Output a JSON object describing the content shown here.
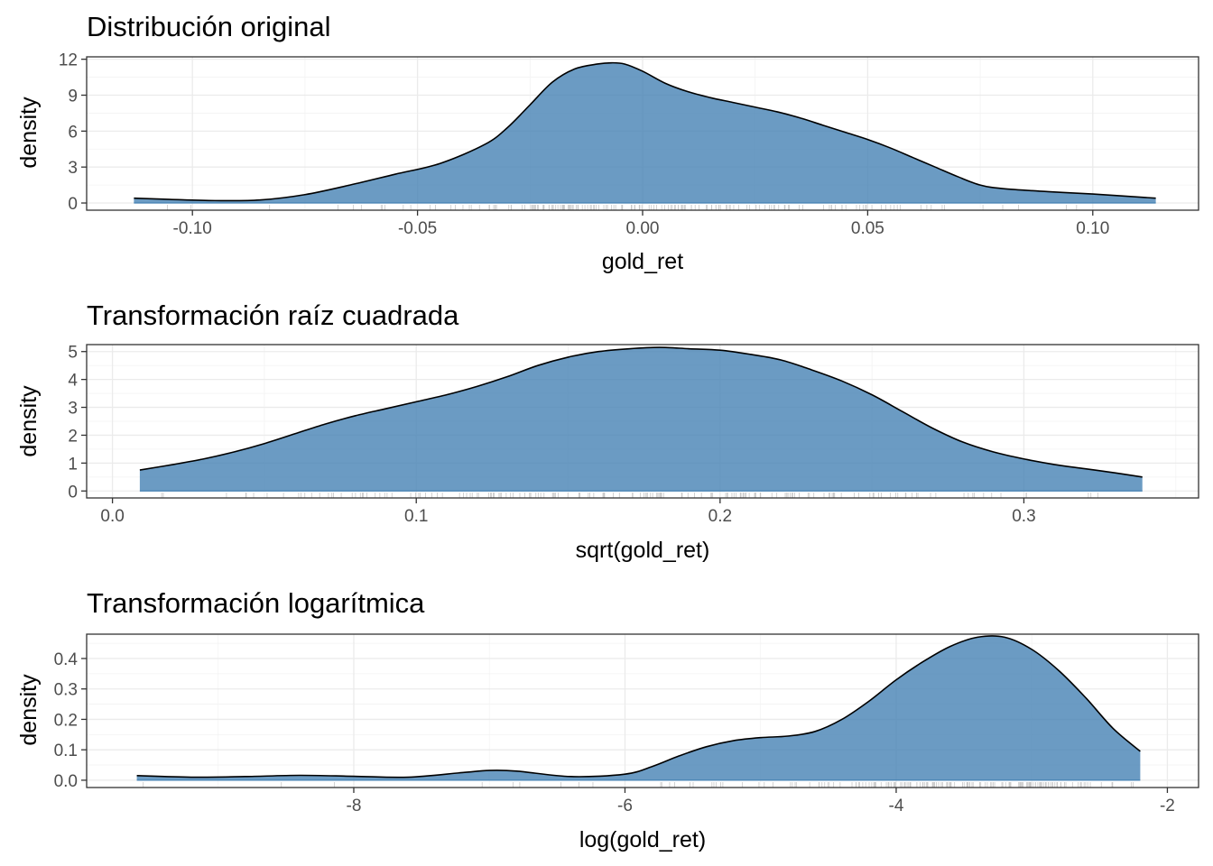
{
  "chart_data": [
    {
      "type": "area",
      "title": "Distribución original",
      "xlabel": "gold_ret",
      "ylabel": "density",
      "xlim": [
        -0.1235,
        0.1235
      ],
      "ylim": [
        -0.6,
        12.2
      ],
      "x_ticks": [
        -0.1,
        -0.05,
        0.0,
        0.05,
        0.1
      ],
      "x_tick_labels": [
        "-0.10",
        "-0.05",
        "0.00",
        "0.05",
        "0.10"
      ],
      "y_ticks": [
        0,
        3,
        6,
        9,
        12
      ],
      "y_tick_labels": [
        "0",
        "3",
        "6",
        "9",
        "12"
      ],
      "grid": true,
      "fill_color": "#4682b4",
      "series": [
        {
          "x": [
            -0.113,
            -0.105,
            -0.095,
            -0.085,
            -0.075,
            -0.065,
            -0.055,
            -0.045,
            -0.035,
            -0.03,
            -0.025,
            -0.02,
            -0.015,
            -0.01,
            -0.007,
            -0.004,
            0.0,
            0.005,
            0.01,
            0.015,
            0.02,
            0.025,
            0.03,
            0.035,
            0.04,
            0.045,
            0.05,
            0.055,
            0.06,
            0.065,
            0.07,
            0.075,
            0.08,
            0.09,
            0.1,
            0.114
          ],
          "y": [
            0.4,
            0.3,
            0.2,
            0.25,
            0.7,
            1.5,
            2.4,
            3.3,
            4.9,
            6.3,
            8.2,
            10.1,
            11.2,
            11.6,
            11.7,
            11.6,
            11.0,
            10.0,
            9.3,
            8.8,
            8.4,
            8.0,
            7.6,
            7.1,
            6.5,
            5.9,
            5.3,
            4.6,
            3.8,
            3.0,
            2.2,
            1.5,
            1.2,
            0.95,
            0.75,
            0.4
          ]
        }
      ]
    },
    {
      "type": "area",
      "title": "Transformación raíz cuadrada",
      "xlabel": "sqrt(gold_ret)",
      "ylabel": "density",
      "xlim": [
        -0.0085,
        0.3575
      ],
      "ylim": [
        -0.25,
        5.25
      ],
      "x_ticks": [
        0.0,
        0.1,
        0.2,
        0.3
      ],
      "x_tick_labels": [
        "0.0",
        "0.1",
        "0.2",
        "0.3"
      ],
      "y_ticks": [
        0,
        1,
        2,
        3,
        4,
        5
      ],
      "y_tick_labels": [
        "0",
        "1",
        "2",
        "3",
        "4",
        "5"
      ],
      "grid": true,
      "fill_color": "#4682b4",
      "series": [
        {
          "x": [
            0.009,
            0.02,
            0.03,
            0.04,
            0.05,
            0.06,
            0.07,
            0.08,
            0.09,
            0.1,
            0.11,
            0.12,
            0.13,
            0.14,
            0.15,
            0.16,
            0.17,
            0.18,
            0.19,
            0.2,
            0.21,
            0.22,
            0.23,
            0.24,
            0.25,
            0.26,
            0.27,
            0.28,
            0.29,
            0.3,
            0.31,
            0.32,
            0.33,
            0.339
          ],
          "y": [
            0.75,
            0.95,
            1.15,
            1.4,
            1.7,
            2.05,
            2.4,
            2.7,
            2.95,
            3.2,
            3.45,
            3.75,
            4.1,
            4.5,
            4.8,
            5.0,
            5.1,
            5.15,
            5.1,
            5.05,
            4.9,
            4.7,
            4.35,
            3.95,
            3.45,
            2.85,
            2.25,
            1.75,
            1.4,
            1.15,
            0.95,
            0.8,
            0.65,
            0.5
          ]
        }
      ]
    },
    {
      "type": "area",
      "title": "Transformación logarítmica",
      "xlabel": "log(gold_ret)",
      "ylabel": "density",
      "xlim": [
        -9.97,
        -1.77
      ],
      "ylim": [
        -0.024,
        0.48
      ],
      "x_ticks": [
        -8,
        -6,
        -4,
        -2
      ],
      "x_tick_labels": [
        "-8",
        "-6",
        "-4",
        "-2"
      ],
      "y_ticks": [
        0.0,
        0.1,
        0.2,
        0.3,
        0.4
      ],
      "y_tick_labels": [
        "0.0",
        "0.1",
        "0.2",
        "0.3",
        "0.4"
      ],
      "grid": true,
      "fill_color": "#4682b4",
      "series": [
        {
          "x": [
            -9.6,
            -9.2,
            -8.8,
            -8.4,
            -8.0,
            -7.6,
            -7.2,
            -7.0,
            -6.8,
            -6.4,
            -6.0,
            -5.8,
            -5.6,
            -5.4,
            -5.2,
            -5.0,
            -4.8,
            -4.6,
            -4.4,
            -4.2,
            -4.0,
            -3.8,
            -3.6,
            -3.4,
            -3.2,
            -3.0,
            -2.8,
            -2.6,
            -2.4,
            -2.2
          ],
          "y": [
            0.015,
            0.01,
            0.012,
            0.016,
            0.013,
            0.01,
            0.025,
            0.032,
            0.03,
            0.012,
            0.02,
            0.045,
            0.08,
            0.11,
            0.13,
            0.14,
            0.145,
            0.16,
            0.2,
            0.26,
            0.33,
            0.39,
            0.44,
            0.47,
            0.47,
            0.43,
            0.36,
            0.27,
            0.17,
            0.095
          ]
        }
      ]
    }
  ]
}
